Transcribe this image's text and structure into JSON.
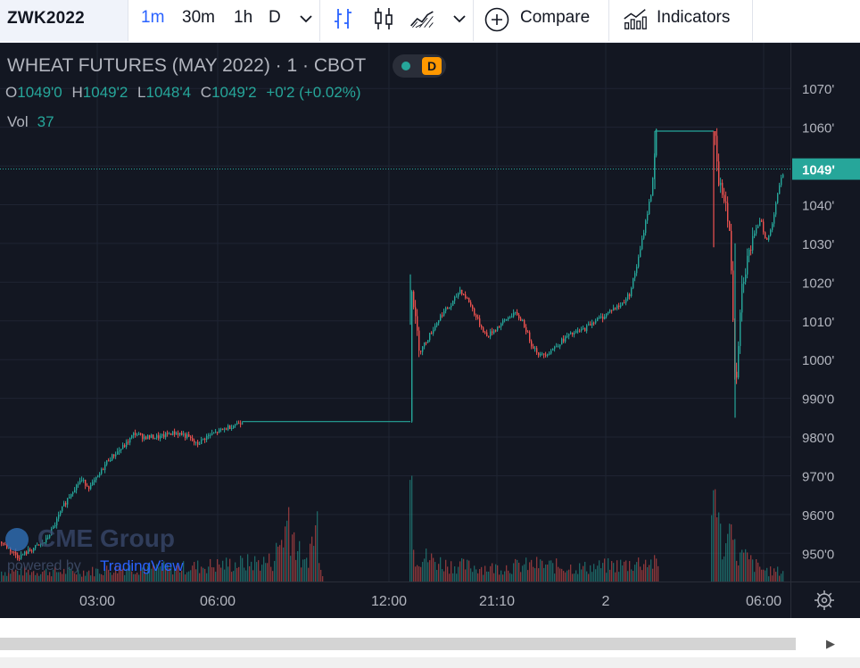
{
  "toolbar": {
    "symbol": "ZWK2022",
    "timeframes": [
      "1m",
      "30m",
      "1h",
      "D"
    ],
    "active_timeframe": "1m",
    "compare_label": "Compare",
    "indicators_label": "Indicators"
  },
  "legend": {
    "title": "WHEAT FUTURES (MAY 2022) · 1 · CBOT",
    "badge": "D",
    "ohlc": {
      "o_label": "O",
      "o": "1049'0",
      "h_label": "H",
      "h": "1049'2",
      "l_label": "L",
      "l": "1048'4",
      "c_label": "C",
      "c": "1049'2",
      "change": "+0'2 (+0.02%)"
    },
    "vol_label": "Vol",
    "vol": "37"
  },
  "watermark": {
    "brand": "CME Group",
    "powered": "powered by",
    "tv": "TradingView"
  },
  "colors": {
    "background": "#131722",
    "up": "#26a69a",
    "down": "#ef5350",
    "axis_text": "#b2b5be",
    "last_price_bg": "#26a69a",
    "accent": "#2962ff"
  },
  "chart_data": {
    "type": "candlestick",
    "title": "WHEAT FUTURES (MAY 2022) · 1 · CBOT",
    "y_tick_labels": [
      "1070'",
      "1060'",
      "1050'",
      "1040'",
      "1030'",
      "1020'",
      "1010'",
      "1000'",
      "990'0",
      "980'0",
      "970'0",
      "960'0",
      "950'0"
    ],
    "y_ticks": [
      1070,
      1060,
      1050,
      1040,
      1030,
      1020,
      1010,
      1000,
      990,
      980,
      970,
      960,
      950
    ],
    "ylim": [
      942.7,
      1081.8
    ],
    "x_tick_labels": [
      "03:00",
      "06:00",
      "12:00",
      "21:10",
      "2",
      "06:00"
    ],
    "last_price": 1049.2,
    "last_price_label": "1049'",
    "price_path": [
      [
        0,
        953
      ],
      [
        10,
        951
      ],
      [
        20,
        949
      ],
      [
        35,
        951
      ],
      [
        50,
        953
      ],
      [
        60,
        957
      ],
      [
        70,
        962
      ],
      [
        80,
        966
      ],
      [
        90,
        969
      ],
      [
        100,
        967
      ],
      [
        110,
        970
      ],
      [
        120,
        974
      ],
      [
        130,
        976
      ],
      [
        140,
        978
      ],
      [
        150,
        981
      ],
      [
        160,
        980
      ],
      [
        170,
        980
      ],
      [
        180,
        980
      ],
      [
        190,
        981
      ],
      [
        200,
        981
      ],
      [
        210,
        980
      ],
      [
        220,
        978
      ],
      [
        230,
        980
      ],
      [
        240,
        981
      ],
      [
        250,
        982
      ],
      [
        260,
        983
      ],
      [
        270,
        984
      ],
      [
        280,
        984
      ],
      [
        300,
        984
      ],
      [
        320,
        984
      ],
      [
        340,
        984
      ],
      [
        360,
        984
      ],
      [
        400,
        984
      ],
      [
        460,
        984
      ],
      [
        460,
        1021
      ],
      [
        465,
        1010
      ],
      [
        470,
        1002
      ],
      [
        475,
        1004
      ],
      [
        485,
        1008
      ],
      [
        495,
        1012
      ],
      [
        505,
        1014
      ],
      [
        515,
        1018
      ],
      [
        525,
        1015
      ],
      [
        535,
        1010
      ],
      [
        545,
        1006
      ],
      [
        555,
        1008
      ],
      [
        565,
        1010
      ],
      [
        575,
        1012
      ],
      [
        585,
        1010
      ],
      [
        595,
        1004
      ],
      [
        605,
        1001
      ],
      [
        615,
        1002
      ],
      [
        625,
        1004
      ],
      [
        635,
        1006
      ],
      [
        645,
        1007
      ],
      [
        655,
        1008
      ],
      [
        665,
        1010
      ],
      [
        675,
        1011
      ],
      [
        685,
        1013
      ],
      [
        695,
        1014
      ],
      [
        705,
        1017
      ],
      [
        715,
        1026
      ],
      [
        725,
        1038
      ],
      [
        730,
        1044
      ],
      [
        735,
        1059
      ],
      [
        745,
        1059
      ],
      [
        760,
        1059
      ],
      [
        780,
        1059
      ],
      [
        800,
        1059
      ],
      [
        805,
        1045
      ],
      [
        812,
        1042
      ],
      [
        818,
        1030
      ],
      [
        824,
        992
      ],
      [
        830,
        1018
      ],
      [
        838,
        1027
      ],
      [
        845,
        1032
      ],
      [
        852,
        1037
      ],
      [
        858,
        1030
      ],
      [
        864,
        1034
      ],
      [
        870,
        1042
      ],
      [
        878,
        1049
      ]
    ],
    "volume": [
      [
        0,
        3
      ],
      [
        60,
        3
      ],
      [
        100,
        3
      ],
      [
        140,
        4
      ],
      [
        200,
        4
      ],
      [
        250,
        5
      ],
      [
        305,
        6
      ],
      [
        323,
        18
      ],
      [
        340,
        4
      ],
      [
        355,
        17
      ],
      [
        360,
        3
      ],
      [
        400,
        3
      ],
      [
        455,
        3
      ],
      [
        460,
        30
      ],
      [
        465,
        8
      ],
      [
        500,
        5
      ],
      [
        550,
        4
      ],
      [
        600,
        5
      ],
      [
        650,
        4
      ],
      [
        700,
        5
      ],
      [
        725,
        6
      ],
      [
        736,
        5
      ],
      [
        790,
        5
      ],
      [
        800,
        24
      ],
      [
        806,
        14
      ],
      [
        812,
        9
      ],
      [
        818,
        15
      ],
      [
        824,
        8
      ],
      [
        835,
        7
      ],
      [
        850,
        4
      ],
      [
        862,
        3
      ],
      [
        876,
        3
      ]
    ],
    "x_tick_positions": [
      109,
      244,
      436,
      557,
      679,
      856
    ]
  }
}
